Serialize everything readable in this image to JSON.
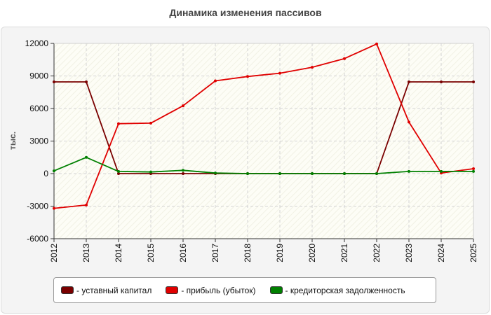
{
  "chart_data": {
    "type": "line",
    "title": "Динамика изменения пассивов",
    "ylabel": "тыс.",
    "xlabel": "",
    "categories": [
      "2012",
      "2013",
      "2014",
      "2015",
      "2016",
      "2017",
      "2018",
      "2019",
      "2020",
      "2021",
      "2022",
      "2023",
      "2024",
      "2025"
    ],
    "y_ticks": [
      "12000",
      "9000",
      "6000",
      "3000",
      "0",
      "-3000",
      "-6000"
    ],
    "ylim": [
      -6000,
      12000
    ],
    "grid": true,
    "legend_position": "bottom",
    "series": [
      {
        "name": "- уставный капитал",
        "color": "#7a0000",
        "values": [
          8450,
          8450,
          0,
          0,
          0,
          0,
          0,
          0,
          0,
          0,
          0,
          8450,
          8450,
          8450
        ]
      },
      {
        "name": "- прибыль (убыток)",
        "color": "#e00000",
        "values": [
          -3200,
          -2900,
          4600,
          4650,
          6250,
          8550,
          8950,
          9250,
          9800,
          10600,
          11950,
          4750,
          50,
          450
        ]
      },
      {
        "name": "- кредиторская задолженность",
        "color": "#008000",
        "values": [
          250,
          1500,
          200,
          150,
          300,
          50,
          0,
          0,
          0,
          0,
          0,
          200,
          200,
          200
        ]
      }
    ]
  }
}
